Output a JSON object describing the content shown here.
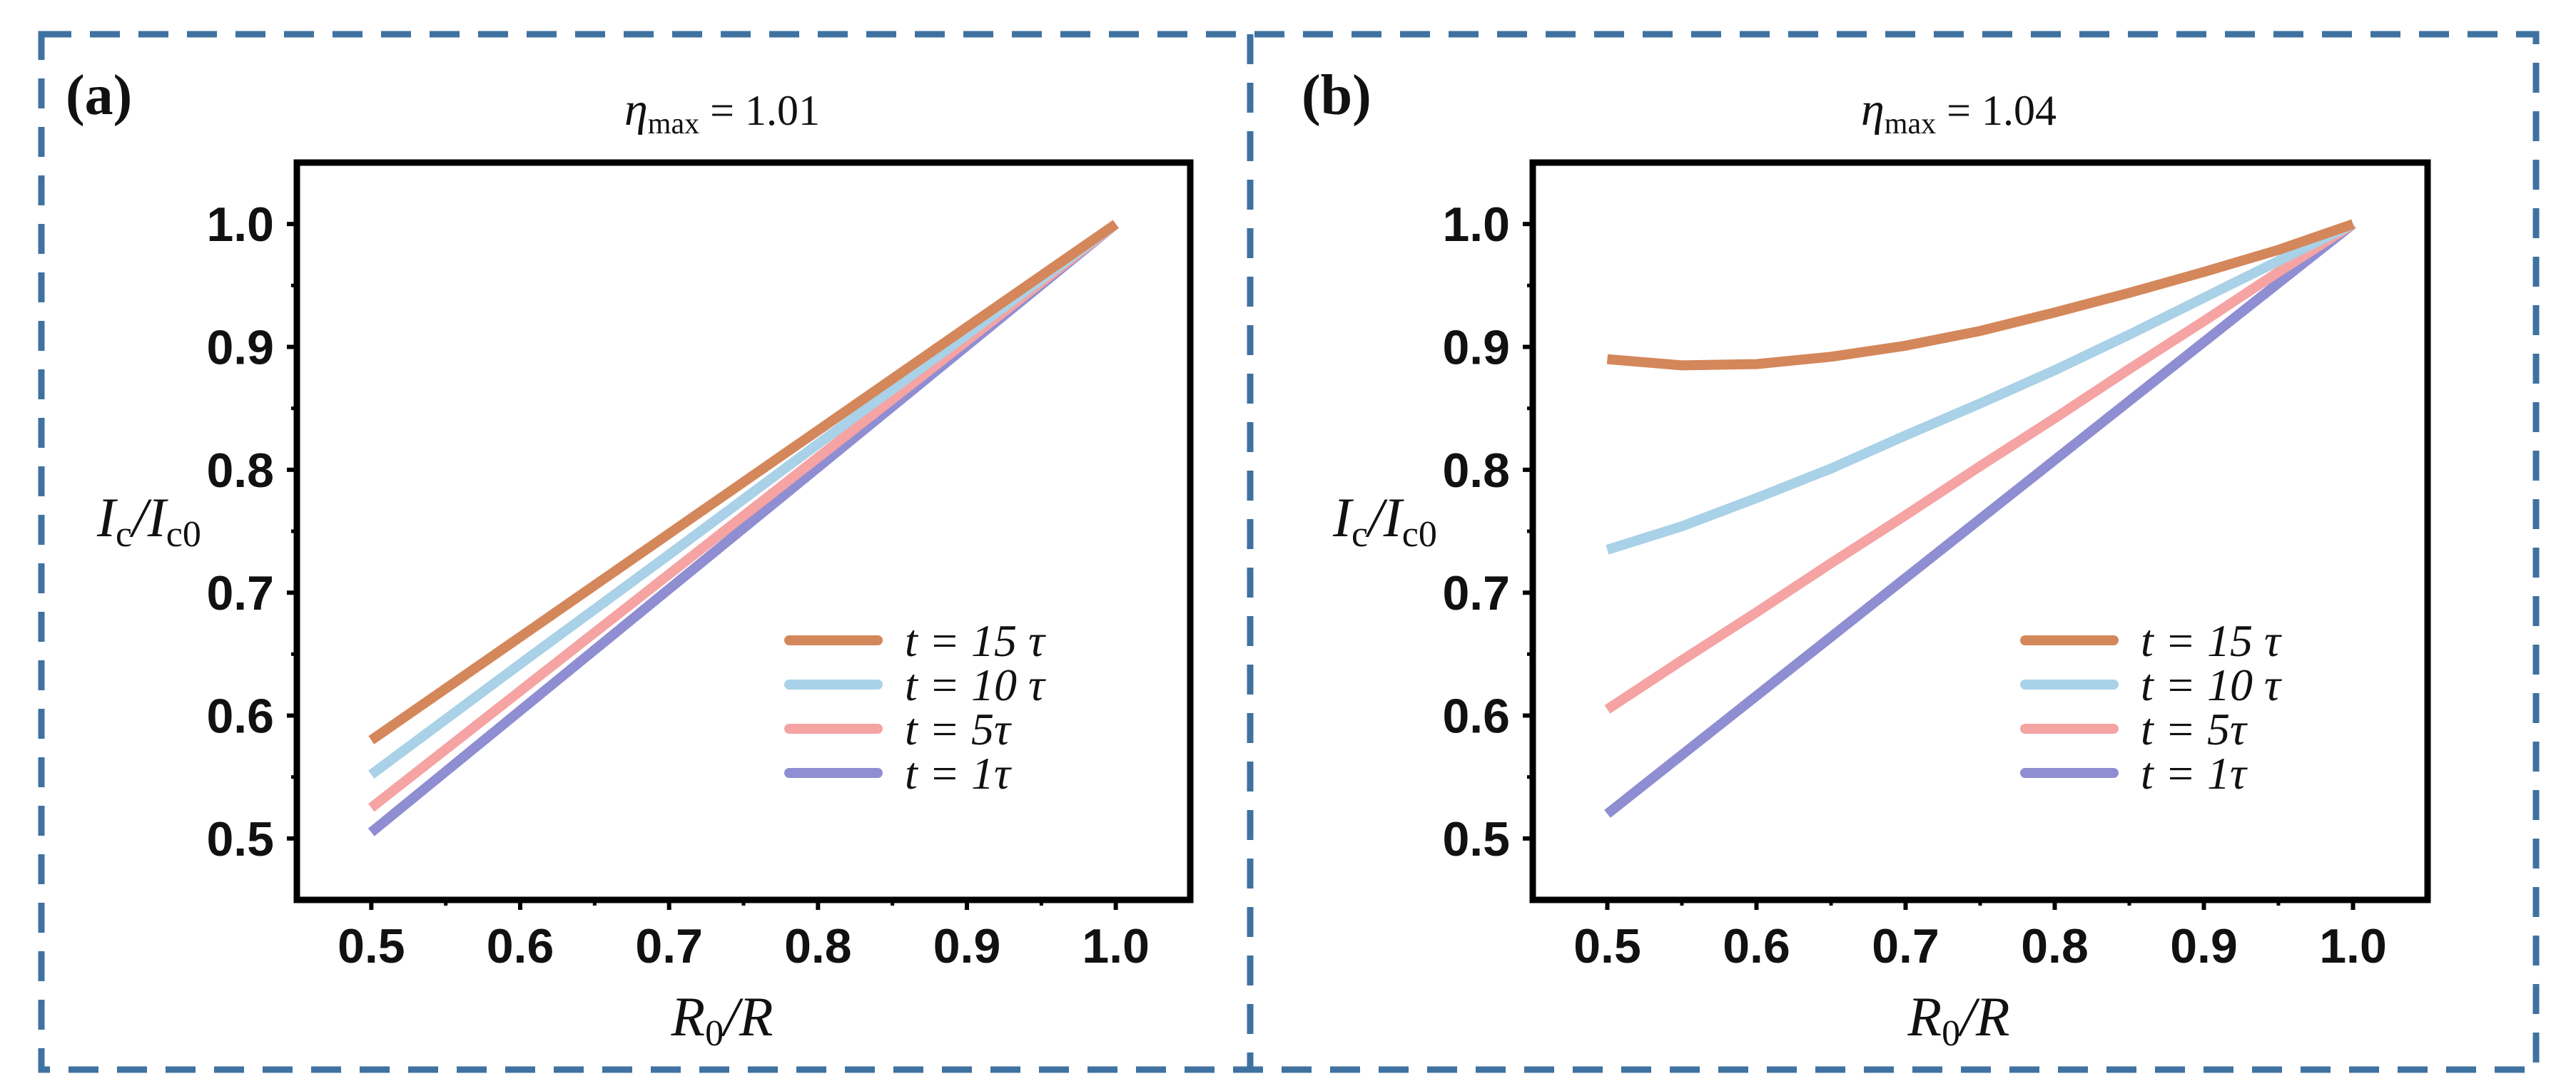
{
  "frame_color": "#3F72A0",
  "chart_data": [
    {
      "type": "line",
      "panel_label": "(a)",
      "title": {
        "symbol": "η",
        "sub": "max",
        "rest": " = 1.01"
      },
      "xlabel": {
        "main": "R",
        "sub": "0",
        "rest": "/R"
      },
      "ylabel": {
        "main": "I",
        "sub": "c",
        "mid": "/I",
        "sub2": "c0"
      },
      "xlim": [
        0.45,
        1.05
      ],
      "ylim": [
        0.45,
        1.05
      ],
      "xticks": [
        "0.5",
        "0.6",
        "0.7",
        "0.8",
        "0.9",
        "1.0"
      ],
      "yticks": [
        "0.5",
        "0.6",
        "0.7",
        "0.8",
        "0.9",
        "1.0"
      ],
      "legend_position": "bottom-right",
      "x": [
        0.5,
        0.6,
        0.7,
        0.8,
        0.9,
        1.0
      ],
      "series": [
        {
          "name": "t = 15 τ",
          "color": "#D4875A",
          "values": [
            0.58,
            0.664,
            0.748,
            0.832,
            0.916,
            1.0
          ]
        },
        {
          "name": "t = 10 τ",
          "color": "#A9D1E7",
          "values": [
            0.552,
            0.642,
            0.731,
            0.821,
            0.91,
            1.0
          ]
        },
        {
          "name": "t = 5τ",
          "color": "#F5A3A3",
          "values": [
            0.525,
            0.62,
            0.715,
            0.81,
            0.905,
            1.0
          ]
        },
        {
          "name": "t = 1τ",
          "color": "#8F8ED2",
          "values": [
            0.505,
            0.604,
            0.703,
            0.802,
            0.901,
            1.0
          ]
        }
      ]
    },
    {
      "type": "line",
      "panel_label": "(b)",
      "title": {
        "symbol": "η",
        "sub": "max",
        "rest": " = 1.04"
      },
      "xlabel": {
        "main": "R",
        "sub": "0",
        "rest": "/R"
      },
      "ylabel": {
        "main": "I",
        "sub": "c",
        "mid": "/I",
        "sub2": "c0"
      },
      "xlim": [
        0.45,
        1.05
      ],
      "ylim": [
        0.45,
        1.05
      ],
      "xticks": [
        "0.5",
        "0.6",
        "0.7",
        "0.8",
        "0.9",
        "1.0"
      ],
      "yticks": [
        "0.5",
        "0.6",
        "0.7",
        "0.8",
        "0.9",
        "1.0"
      ],
      "legend_position": "bottom-right",
      "x": [
        0.5,
        0.55,
        0.6,
        0.65,
        0.7,
        0.75,
        0.8,
        0.85,
        0.9,
        0.95,
        1.0
      ],
      "series": [
        {
          "name": "t = 15 τ",
          "color": "#D4875A",
          "values": [
            0.89,
            0.885,
            0.886,
            0.892,
            0.901,
            0.913,
            0.928,
            0.944,
            0.961,
            0.979,
            1.0
          ]
        },
        {
          "name": "t = 10 τ",
          "color": "#A9D1E7",
          "values": [
            0.735,
            0.754,
            0.777,
            0.801,
            0.828,
            0.854,
            0.881,
            0.91,
            0.94,
            0.97,
            1.0
          ]
        },
        {
          "name": "t = 5τ",
          "color": "#F5A3A3",
          "values": [
            0.605,
            0.645,
            0.684,
            0.724,
            0.763,
            0.803,
            0.842,
            0.882,
            0.921,
            0.961,
            1.0
          ]
        },
        {
          "name": "t = 1τ",
          "color": "#8F8ED2",
          "values": [
            0.52,
            0.568,
            0.616,
            0.664,
            0.712,
            0.76,
            0.808,
            0.856,
            0.904,
            0.952,
            1.0
          ]
        }
      ]
    }
  ]
}
